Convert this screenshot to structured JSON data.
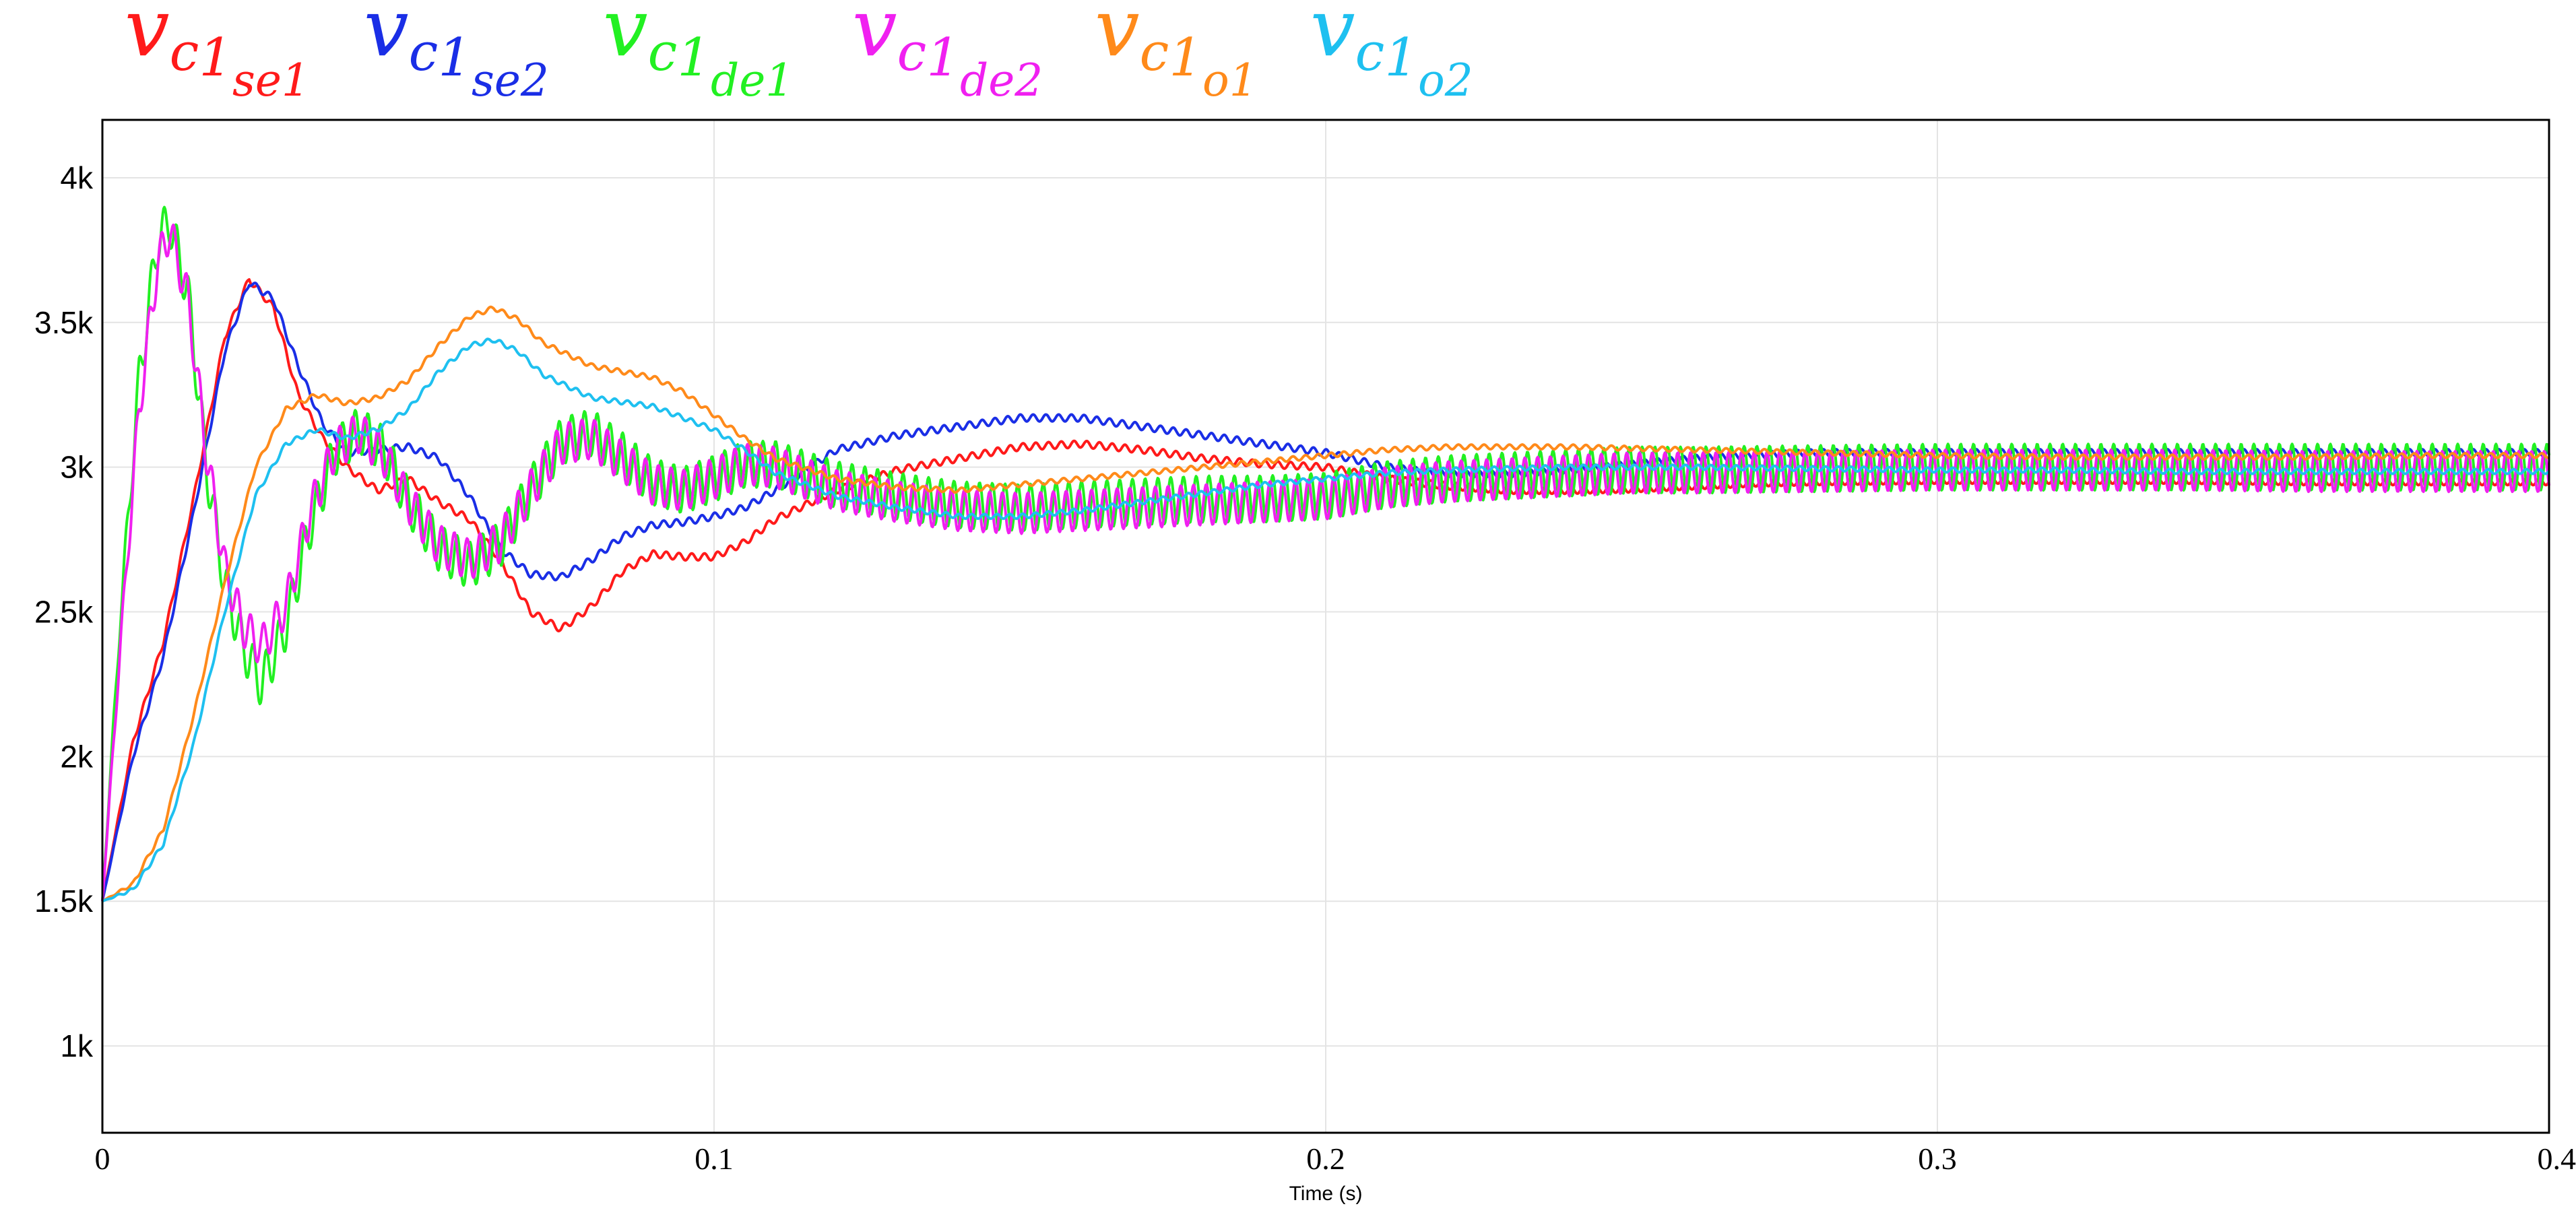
{
  "legend": [
    {
      "base": "v",
      "sub": "c",
      "subsub_digit": "1",
      "subsub_rest": "se1",
      "color": "#ff1a1a"
    },
    {
      "base": "v",
      "sub": "c",
      "subsub_digit": "1",
      "subsub_rest": "se2",
      "color": "#1a2ee6"
    },
    {
      "base": "v",
      "sub": "c",
      "subsub_digit": "1",
      "subsub_rest": "de1",
      "color": "#22f022"
    },
    {
      "base": "v",
      "sub": "c",
      "subsub_digit": "1",
      "subsub_rest": "de2",
      "color": "#f020f0"
    },
    {
      "base": "v",
      "sub": "c",
      "subsub_digit": "1",
      "subsub_rest": "o1",
      "color": "#ff8a1a"
    },
    {
      "base": "v",
      "sub": "c",
      "subsub_digit": "1",
      "subsub_rest": "o2",
      "color": "#1ec0f0"
    }
  ],
  "chart_data": {
    "type": "line",
    "title": "",
    "xlabel": "Time (s)",
    "ylabel": "",
    "xlim": [
      0,
      0.4
    ],
    "ylim": [
      700,
      4200
    ],
    "grid": true,
    "legend_position": "top",
    "x_ticks": [
      {
        "value": 0,
        "label": "0"
      },
      {
        "value": 0.1,
        "label": "0.1"
      },
      {
        "value": 0.2,
        "label": "0.2"
      },
      {
        "value": 0.3,
        "label": "0.3"
      },
      {
        "value": 0.4,
        "label": "0.4"
      }
    ],
    "y_ticks": [
      {
        "value": 1000,
        "label": "1k"
      },
      {
        "value": 1500,
        "label": "1.5k"
      },
      {
        "value": 2000,
        "label": "2k"
      },
      {
        "value": 2500,
        "label": "2.5k"
      },
      {
        "value": 3000,
        "label": "3k"
      },
      {
        "value": 3500,
        "label": "3.5k"
      },
      {
        "value": 4000,
        "label": "4k"
      }
    ],
    "series": [
      {
        "key": "vc1se1",
        "color": "#ff1a1a",
        "ripple_amplitude": 12,
        "points": [
          [
            0,
            1500
          ],
          [
            0.005,
            2050
          ],
          [
            0.01,
            2400
          ],
          [
            0.015,
            2900
          ],
          [
            0.02,
            3450
          ],
          [
            0.024,
            3650
          ],
          [
            0.028,
            3550
          ],
          [
            0.032,
            3250
          ],
          [
            0.036,
            3100
          ],
          [
            0.04,
            3000
          ],
          [
            0.045,
            2920
          ],
          [
            0.05,
            2960
          ],
          [
            0.055,
            2880
          ],
          [
            0.06,
            2820
          ],
          [
            0.065,
            2680
          ],
          [
            0.07,
            2500
          ],
          [
            0.075,
            2440
          ],
          [
            0.08,
            2520
          ],
          [
            0.085,
            2640
          ],
          [
            0.09,
            2700
          ],
          [
            0.095,
            2690
          ],
          [
            0.1,
            2690
          ],
          [
            0.105,
            2740
          ],
          [
            0.11,
            2820
          ],
          [
            0.12,
            2920
          ],
          [
            0.13,
            2990
          ],
          [
            0.14,
            3030
          ],
          [
            0.15,
            3070
          ],
          [
            0.16,
            3080
          ],
          [
            0.17,
            3060
          ],
          [
            0.18,
            3030
          ],
          [
            0.19,
            3010
          ],
          [
            0.2,
            3000
          ],
          [
            0.21,
            2960
          ],
          [
            0.22,
            2935
          ],
          [
            0.23,
            2920
          ],
          [
            0.24,
            2920
          ],
          [
            0.25,
            2925
          ],
          [
            0.26,
            2935
          ],
          [
            0.27,
            2945
          ],
          [
            0.28,
            2950
          ],
          [
            0.3,
            2955
          ],
          [
            0.32,
            2955
          ],
          [
            0.34,
            2955
          ],
          [
            0.36,
            2950
          ],
          [
            0.38,
            2950
          ],
          [
            0.4,
            2950
          ]
        ]
      },
      {
        "key": "vc1se2",
        "color": "#1a2ee6",
        "ripple_amplitude": 12,
        "points": [
          [
            0,
            1500
          ],
          [
            0.005,
            2000
          ],
          [
            0.01,
            2350
          ],
          [
            0.015,
            2850
          ],
          [
            0.02,
            3400
          ],
          [
            0.024,
            3640
          ],
          [
            0.028,
            3580
          ],
          [
            0.032,
            3350
          ],
          [
            0.036,
            3150
          ],
          [
            0.04,
            3050
          ],
          [
            0.045,
            3060
          ],
          [
            0.05,
            3070
          ],
          [
            0.055,
            3030
          ],
          [
            0.06,
            2900
          ],
          [
            0.065,
            2720
          ],
          [
            0.07,
            2630
          ],
          [
            0.075,
            2620
          ],
          [
            0.08,
            2680
          ],
          [
            0.085,
            2760
          ],
          [
            0.09,
            2800
          ],
          [
            0.095,
            2810
          ],
          [
            0.1,
            2830
          ],
          [
            0.105,
            2860
          ],
          [
            0.11,
            2920
          ],
          [
            0.12,
            3060
          ],
          [
            0.13,
            3110
          ],
          [
            0.14,
            3140
          ],
          [
            0.15,
            3170
          ],
          [
            0.16,
            3170
          ],
          [
            0.17,
            3140
          ],
          [
            0.18,
            3110
          ],
          [
            0.19,
            3080
          ],
          [
            0.2,
            3050
          ],
          [
            0.21,
            3000
          ],
          [
            0.22,
            2975
          ],
          [
            0.23,
            2975
          ],
          [
            0.24,
            2990
          ],
          [
            0.25,
            3010
          ],
          [
            0.26,
            3030
          ],
          [
            0.27,
            3040
          ],
          [
            0.28,
            3050
          ],
          [
            0.3,
            3050
          ],
          [
            0.32,
            3050
          ],
          [
            0.34,
            3050
          ],
          [
            0.36,
            3050
          ],
          [
            0.38,
            3050
          ],
          [
            0.4,
            3050
          ]
        ]
      },
      {
        "key": "vc1de1",
        "color": "#22f022",
        "ripple_amplitude": 80,
        "points": [
          [
            0,
            1500
          ],
          [
            0.003,
            2500
          ],
          [
            0.006,
            3300
          ],
          [
            0.009,
            3780
          ],
          [
            0.011,
            3850
          ],
          [
            0.014,
            3600
          ],
          [
            0.017,
            3000
          ],
          [
            0.02,
            2600
          ],
          [
            0.023,
            2380
          ],
          [
            0.026,
            2250
          ],
          [
            0.03,
            2450
          ],
          [
            0.034,
            2800
          ],
          [
            0.038,
            3050
          ],
          [
            0.042,
            3130
          ],
          [
            0.046,
            3060
          ],
          [
            0.05,
            2880
          ],
          [
            0.055,
            2720
          ],
          [
            0.06,
            2660
          ],
          [
            0.065,
            2730
          ],
          [
            0.07,
            2920
          ],
          [
            0.075,
            3090
          ],
          [
            0.08,
            3120
          ],
          [
            0.085,
            3040
          ],
          [
            0.09,
            2950
          ],
          [
            0.095,
            2920
          ],
          [
            0.1,
            2960
          ],
          [
            0.105,
            3010
          ],
          [
            0.11,
            3010
          ],
          [
            0.12,
            2940
          ],
          [
            0.13,
            2900
          ],
          [
            0.14,
            2870
          ],
          [
            0.15,
            2860
          ],
          [
            0.16,
            2870
          ],
          [
            0.17,
            2880
          ],
          [
            0.18,
            2890
          ],
          [
            0.19,
            2890
          ],
          [
            0.2,
            2900
          ],
          [
            0.21,
            2940
          ],
          [
            0.22,
            2960
          ],
          [
            0.23,
            2970
          ],
          [
            0.24,
            2980
          ],
          [
            0.25,
            2990
          ],
          [
            0.26,
            2990
          ],
          [
            0.28,
            2995
          ],
          [
            0.3,
            3000
          ],
          [
            0.32,
            3000
          ],
          [
            0.34,
            3000
          ],
          [
            0.36,
            3000
          ],
          [
            0.38,
            3000
          ],
          [
            0.4,
            3000
          ]
        ]
      },
      {
        "key": "vc1de2",
        "color": "#f020f0",
        "ripple_amplitude": 70,
        "points": [
          [
            0,
            1500
          ],
          [
            0.003,
            2400
          ],
          [
            0.006,
            3200
          ],
          [
            0.009,
            3700
          ],
          [
            0.011,
            3820
          ],
          [
            0.014,
            3580
          ],
          [
            0.017,
            3050
          ],
          [
            0.02,
            2650
          ],
          [
            0.023,
            2450
          ],
          [
            0.026,
            2380
          ],
          [
            0.03,
            2520
          ],
          [
            0.034,
            2850
          ],
          [
            0.038,
            3060
          ],
          [
            0.042,
            3120
          ],
          [
            0.046,
            3040
          ],
          [
            0.05,
            2880
          ],
          [
            0.055,
            2730
          ],
          [
            0.06,
            2680
          ],
          [
            0.065,
            2740
          ],
          [
            0.07,
            2920
          ],
          [
            0.075,
            3080
          ],
          [
            0.08,
            3100
          ],
          [
            0.085,
            3020
          ],
          [
            0.09,
            2940
          ],
          [
            0.095,
            2920
          ],
          [
            0.1,
            2960
          ],
          [
            0.105,
            3010
          ],
          [
            0.11,
            3000
          ],
          [
            0.12,
            2920
          ],
          [
            0.13,
            2880
          ],
          [
            0.14,
            2850
          ],
          [
            0.15,
            2840
          ],
          [
            0.16,
            2850
          ],
          [
            0.17,
            2860
          ],
          [
            0.18,
            2870
          ],
          [
            0.19,
            2880
          ],
          [
            0.2,
            2890
          ],
          [
            0.21,
            2930
          ],
          [
            0.22,
            2950
          ],
          [
            0.23,
            2960
          ],
          [
            0.24,
            2970
          ],
          [
            0.25,
            2980
          ],
          [
            0.26,
            2980
          ],
          [
            0.28,
            2985
          ],
          [
            0.3,
            2990
          ],
          [
            0.32,
            2990
          ],
          [
            0.34,
            2990
          ],
          [
            0.36,
            2985
          ],
          [
            0.38,
            2985
          ],
          [
            0.4,
            2985
          ]
        ]
      },
      {
        "key": "vc1o1",
        "color": "#ff8a1a",
        "ripple_amplitude": 8,
        "points": [
          [
            0,
            1500
          ],
          [
            0.005,
            1560
          ],
          [
            0.01,
            1750
          ],
          [
            0.015,
            2150
          ],
          [
            0.02,
            2600
          ],
          [
            0.025,
            3000
          ],
          [
            0.03,
            3200
          ],
          [
            0.035,
            3250
          ],
          [
            0.04,
            3220
          ],
          [
            0.045,
            3240
          ],
          [
            0.05,
            3300
          ],
          [
            0.055,
            3420
          ],
          [
            0.06,
            3520
          ],
          [
            0.064,
            3550
          ],
          [
            0.068,
            3510
          ],
          [
            0.072,
            3430
          ],
          [
            0.08,
            3350
          ],
          [
            0.09,
            3310
          ],
          [
            0.095,
            3260
          ],
          [
            0.1,
            3180
          ],
          [
            0.105,
            3100
          ],
          [
            0.11,
            3030
          ],
          [
            0.12,
            2960
          ],
          [
            0.13,
            2930
          ],
          [
            0.14,
            2920
          ],
          [
            0.15,
            2940
          ],
          [
            0.16,
            2960
          ],
          [
            0.17,
            2980
          ],
          [
            0.18,
            3000
          ],
          [
            0.19,
            3020
          ],
          [
            0.2,
            3040
          ],
          [
            0.21,
            3060
          ],
          [
            0.22,
            3070
          ],
          [
            0.23,
            3070
          ],
          [
            0.24,
            3070
          ],
          [
            0.25,
            3065
          ],
          [
            0.26,
            3060
          ],
          [
            0.27,
            3055
          ],
          [
            0.28,
            3050
          ],
          [
            0.3,
            3040
          ],
          [
            0.32,
            3035
          ],
          [
            0.34,
            3035
          ],
          [
            0.36,
            3035
          ],
          [
            0.38,
            3040
          ],
          [
            0.4,
            3040
          ]
        ]
      },
      {
        "key": "vc1o2",
        "color": "#1ec0f0",
        "ripple_amplitude": 8,
        "points": [
          [
            0,
            1500
          ],
          [
            0.005,
            1540
          ],
          [
            0.01,
            1700
          ],
          [
            0.015,
            2050
          ],
          [
            0.02,
            2500
          ],
          [
            0.025,
            2900
          ],
          [
            0.03,
            3080
          ],
          [
            0.035,
            3130
          ],
          [
            0.04,
            3100
          ],
          [
            0.045,
            3130
          ],
          [
            0.05,
            3200
          ],
          [
            0.055,
            3330
          ],
          [
            0.06,
            3420
          ],
          [
            0.064,
            3440
          ],
          [
            0.068,
            3400
          ],
          [
            0.072,
            3320
          ],
          [
            0.08,
            3240
          ],
          [
            0.09,
            3210
          ],
          [
            0.1,
            3130
          ],
          [
            0.105,
            3060
          ],
          [
            0.11,
            2980
          ],
          [
            0.12,
            2900
          ],
          [
            0.13,
            2860
          ],
          [
            0.14,
            2830
          ],
          [
            0.15,
            2830
          ],
          [
            0.16,
            2850
          ],
          [
            0.17,
            2880
          ],
          [
            0.18,
            2910
          ],
          [
            0.19,
            2940
          ],
          [
            0.2,
            2960
          ],
          [
            0.21,
            2980
          ],
          [
            0.22,
            2990
          ],
          [
            0.23,
            2995
          ],
          [
            0.24,
            3000
          ],
          [
            0.25,
            3000
          ],
          [
            0.26,
            3000
          ],
          [
            0.28,
            2995
          ],
          [
            0.3,
            2990
          ],
          [
            0.32,
            2990
          ],
          [
            0.34,
            2985
          ],
          [
            0.36,
            2985
          ],
          [
            0.38,
            2985
          ],
          [
            0.4,
            2985
          ]
        ]
      }
    ]
  }
}
